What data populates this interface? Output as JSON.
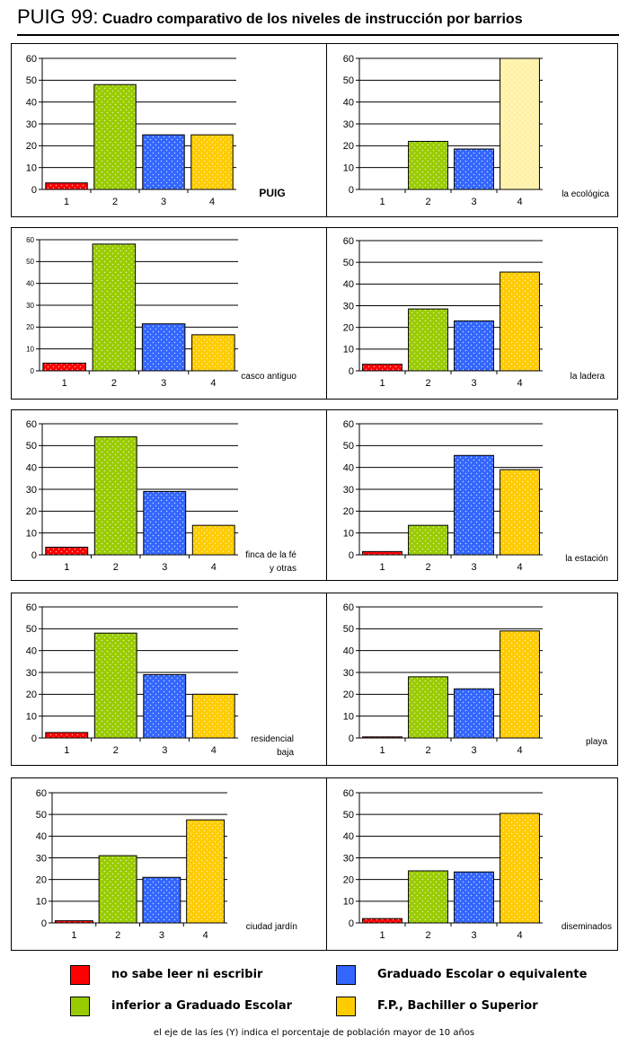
{
  "title": {
    "main": "PUIG 99:",
    "sub": " Cuadro comparativo de los niveles de instrucción por barrios"
  },
  "colors": {
    "c1": "#ff0000",
    "c2": "#99cc00",
    "c3": "#3366ff",
    "c4": "#ffcc00",
    "c4_light": "#fff2a8"
  },
  "footnote": "el eje de las íes (Y) indica el porcentaje de población mayor de 10 años",
  "legend": [
    {
      "label": "no sabe leer ni escribir",
      "color": "#ff0000"
    },
    {
      "label": "Graduado Escolar o equivalente",
      "color": "#3366ff"
    },
    {
      "label": "inferior a Graduado Escolar",
      "color": "#99cc00"
    },
    {
      "label": "F.P., Bachiller o Superior",
      "color": "#ffcc00"
    }
  ],
  "chart_data": [
    {
      "type": "bar",
      "title": "PUIG",
      "title_bold": true,
      "categories": [
        "1",
        "2",
        "3",
        "4"
      ],
      "values": [
        3,
        48,
        25,
        25
      ],
      "ylim": [
        0,
        60
      ],
      "yticks": [
        0,
        10,
        20,
        30,
        40,
        50,
        60
      ],
      "xlabel": "",
      "ylabel": ""
    },
    {
      "type": "bar",
      "title": "la ecológica",
      "categories": [
        "1",
        "2",
        "3",
        "4"
      ],
      "values": [
        0,
        22,
        18.5,
        60
      ],
      "ylim": [
        0,
        60
      ],
      "yticks": [
        0,
        10,
        20,
        30,
        40,
        50,
        60
      ],
      "xlabel": "",
      "ylabel": "",
      "light_last": true
    },
    {
      "type": "bar",
      "title": "casco antiguo",
      "categories": [
        "1",
        "2",
        "3",
        "4"
      ],
      "values": [
        3.5,
        58,
        21.5,
        16.5
      ],
      "ylim": [
        0,
        60
      ],
      "yticks": [
        0,
        10,
        20,
        30,
        40,
        50,
        60
      ],
      "xlabel": "",
      "ylabel": ""
    },
    {
      "type": "bar",
      "title": "la ladera",
      "categories": [
        "1",
        "2",
        "3",
        "4"
      ],
      "values": [
        3,
        28.5,
        23,
        45.5
      ],
      "ylim": [
        0,
        60
      ],
      "yticks": [
        0,
        10,
        20,
        30,
        40,
        50,
        60
      ],
      "xlabel": "",
      "ylabel": ""
    },
    {
      "type": "bar",
      "title": "finca de la fé y otras",
      "title_lines": [
        "finca de la fé",
        "y otras"
      ],
      "categories": [
        "1",
        "2",
        "3",
        "4"
      ],
      "values": [
        3.5,
        54,
        29,
        13.5
      ],
      "ylim": [
        0,
        60
      ],
      "yticks": [
        0,
        10,
        20,
        30,
        40,
        50,
        60
      ],
      "xlabel": "",
      "ylabel": ""
    },
    {
      "type": "bar",
      "title": "la estación",
      "categories": [
        "1",
        "2",
        "3",
        "4"
      ],
      "values": [
        1.5,
        13.5,
        45.5,
        39
      ],
      "ylim": [
        0,
        60
      ],
      "yticks": [
        0,
        10,
        20,
        30,
        40,
        50,
        60
      ],
      "xlabel": "",
      "ylabel": ""
    },
    {
      "type": "bar",
      "title": "residencial baja",
      "title_lines": [
        "residencial",
        "baja"
      ],
      "categories": [
        "1",
        "2",
        "3",
        "4"
      ],
      "values": [
        2.5,
        48,
        29,
        20
      ],
      "ylim": [
        0,
        60
      ],
      "yticks": [
        0,
        10,
        20,
        30,
        40,
        50,
        60
      ],
      "xlabel": "",
      "ylabel": ""
    },
    {
      "type": "bar",
      "title": "playa",
      "categories": [
        "1",
        "2",
        "3",
        "4"
      ],
      "values": [
        0.5,
        28,
        22.5,
        49
      ],
      "ylim": [
        0,
        60
      ],
      "yticks": [
        0,
        10,
        20,
        30,
        40,
        50,
        60
      ],
      "xlabel": "",
      "ylabel": ""
    },
    {
      "type": "bar",
      "title": "ciudad jardín",
      "categories": [
        "1",
        "2",
        "3",
        "4"
      ],
      "values": [
        1,
        31,
        21,
        47.5
      ],
      "ylim": [
        0,
        60
      ],
      "yticks": [
        0,
        10,
        20,
        30,
        40,
        50,
        60
      ],
      "xlabel": "",
      "ylabel": ""
    },
    {
      "type": "bar",
      "title": "diseminados",
      "categories": [
        "1",
        "2",
        "3",
        "4"
      ],
      "values": [
        2,
        24,
        23.5,
        50.5
      ],
      "ylim": [
        0,
        60
      ],
      "yticks": [
        0,
        10,
        20,
        30,
        40,
        50,
        60
      ],
      "xlabel": "",
      "ylabel": ""
    }
  ]
}
